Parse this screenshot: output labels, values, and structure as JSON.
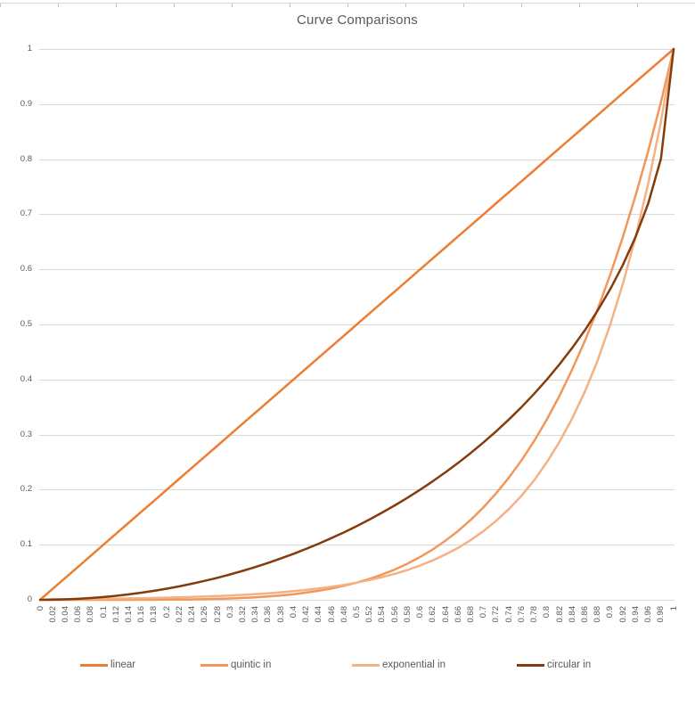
{
  "title": {
    "text": "Curve Comparisons",
    "color": "#595959"
  },
  "colors": {
    "gridline": "#d9d9d9",
    "axis_text": "#595959",
    "title_text": "#595959",
    "sheet_edge": "#d9d9d9"
  },
  "legend": {
    "position": "bottom",
    "items": [
      {
        "label": "linear",
        "color": "#ED7D31"
      },
      {
        "label": "quintic in",
        "color": "#F1975A"
      },
      {
        "label": "exponential in",
        "color": "#F4B183"
      },
      {
        "label": "circular in",
        "color": "#843C0C"
      }
    ]
  },
  "chart_data": {
    "type": "line",
    "title": "Curve Comparisons",
    "xlabel": "",
    "ylabel": "",
    "xlim": [
      0,
      1
    ],
    "ylim": [
      0,
      1
    ],
    "x_tick_interval": 0.02,
    "y_tick_interval": 0.1,
    "grid": "horizontal",
    "legend_position": "bottom",
    "y_ticks": [
      0,
      0.1,
      0.2,
      0.3,
      0.4,
      0.5,
      0.6,
      0.7,
      0.8,
      0.9,
      1
    ],
    "x": [
      0,
      0.02,
      0.04,
      0.06,
      0.08,
      0.1,
      0.12,
      0.14,
      0.16,
      0.18,
      0.2,
      0.22,
      0.24,
      0.26,
      0.28,
      0.3,
      0.32,
      0.34,
      0.36,
      0.38,
      0.4,
      0.42,
      0.44,
      0.46,
      0.48,
      0.5,
      0.52,
      0.54,
      0.56,
      0.58,
      0.6,
      0.62,
      0.64,
      0.66,
      0.68,
      0.7,
      0.72,
      0.74,
      0.76,
      0.78,
      0.8,
      0.82,
      0.84,
      0.86,
      0.88,
      0.9,
      0.92,
      0.94,
      0.96,
      0.98,
      1
    ],
    "series": [
      {
        "name": "linear",
        "color": "#ED7D31",
        "values": [
          0,
          0.02,
          0.04,
          0.06,
          0.08,
          0.1,
          0.12,
          0.14,
          0.16,
          0.18,
          0.2,
          0.22,
          0.24,
          0.26,
          0.28,
          0.3,
          0.32,
          0.34,
          0.36,
          0.38,
          0.4,
          0.42,
          0.44,
          0.46,
          0.48,
          0.5,
          0.52,
          0.54,
          0.56,
          0.58,
          0.6,
          0.62,
          0.64,
          0.66,
          0.68,
          0.7,
          0.72,
          0.74,
          0.76,
          0.78,
          0.8,
          0.82,
          0.84,
          0.86,
          0.88,
          0.9,
          0.92,
          0.94,
          0.96,
          0.98,
          1
        ]
      },
      {
        "name": "quintic in",
        "color": "#F1975A",
        "values": [
          0,
          0,
          0,
          0,
          0,
          1e-05,
          2e-05,
          5e-05,
          0.0001,
          0.00019,
          0.00032,
          0.00052,
          0.0008,
          0.00119,
          0.00172,
          0.00243,
          0.00336,
          0.00454,
          0.00605,
          0.00792,
          0.01024,
          0.01307,
          0.01649,
          0.0206,
          0.02549,
          0.03125,
          0.03802,
          0.04592,
          0.05507,
          0.06564,
          0.07776,
          0.09161,
          0.10737,
          0.12523,
          0.14539,
          0.16807,
          0.19349,
          0.2219,
          0.25355,
          0.28872,
          0.32768,
          0.37074,
          0.41821,
          0.47043,
          0.52773,
          0.59049,
          0.65908,
          0.7339,
          0.81537,
          0.90392,
          1
        ]
      },
      {
        "name": "exponential in",
        "color": "#F4B183",
        "values": [
          0,
          0.00112,
          0.00129,
          0.00148,
          0.0017,
          0.00195,
          0.00224,
          0.00257,
          0.00296,
          0.00339,
          0.00391,
          0.00448,
          0.00515,
          0.00591,
          0.00679,
          0.00781,
          0.00897,
          0.0103,
          0.01182,
          0.01357,
          0.01563,
          0.01794,
          0.02059,
          0.02364,
          0.02714,
          0.03125,
          0.03588,
          0.04119,
          0.04728,
          0.05428,
          0.0625,
          0.07175,
          0.08237,
          0.09457,
          0.10856,
          0.125,
          0.1435,
          0.16474,
          0.18913,
          0.21713,
          0.25,
          0.28701,
          0.32949,
          0.37827,
          0.43426,
          0.5,
          0.57402,
          0.65898,
          0.75654,
          0.86852,
          1
        ]
      },
      {
        "name": "circular in",
        "color": "#843C0C",
        "values": [
          0,
          0.0002,
          0.0008,
          0.0018,
          0.00321,
          0.00501,
          0.00723,
          0.00985,
          0.01288,
          0.01633,
          0.0202,
          0.0245,
          0.02923,
          0.03439,
          0.04,
          0.04606,
          0.05258,
          0.05958,
          0.06705,
          0.07501,
          0.08349,
          0.09248,
          0.102,
          0.11208,
          0.12273,
          0.13397,
          0.14583,
          0.15834,
          0.17151,
          0.18538,
          0.2,
          0.2154,
          0.23162,
          0.24873,
          0.26679,
          0.28586,
          0.30603,
          0.32739,
          0.35008,
          0.37422,
          0.4,
          0.42764,
          0.45741,
          0.48971,
          0.52503,
          0.56411,
          0.60808,
          0.65883,
          0.72,
          0.801,
          1
        ]
      }
    ]
  }
}
